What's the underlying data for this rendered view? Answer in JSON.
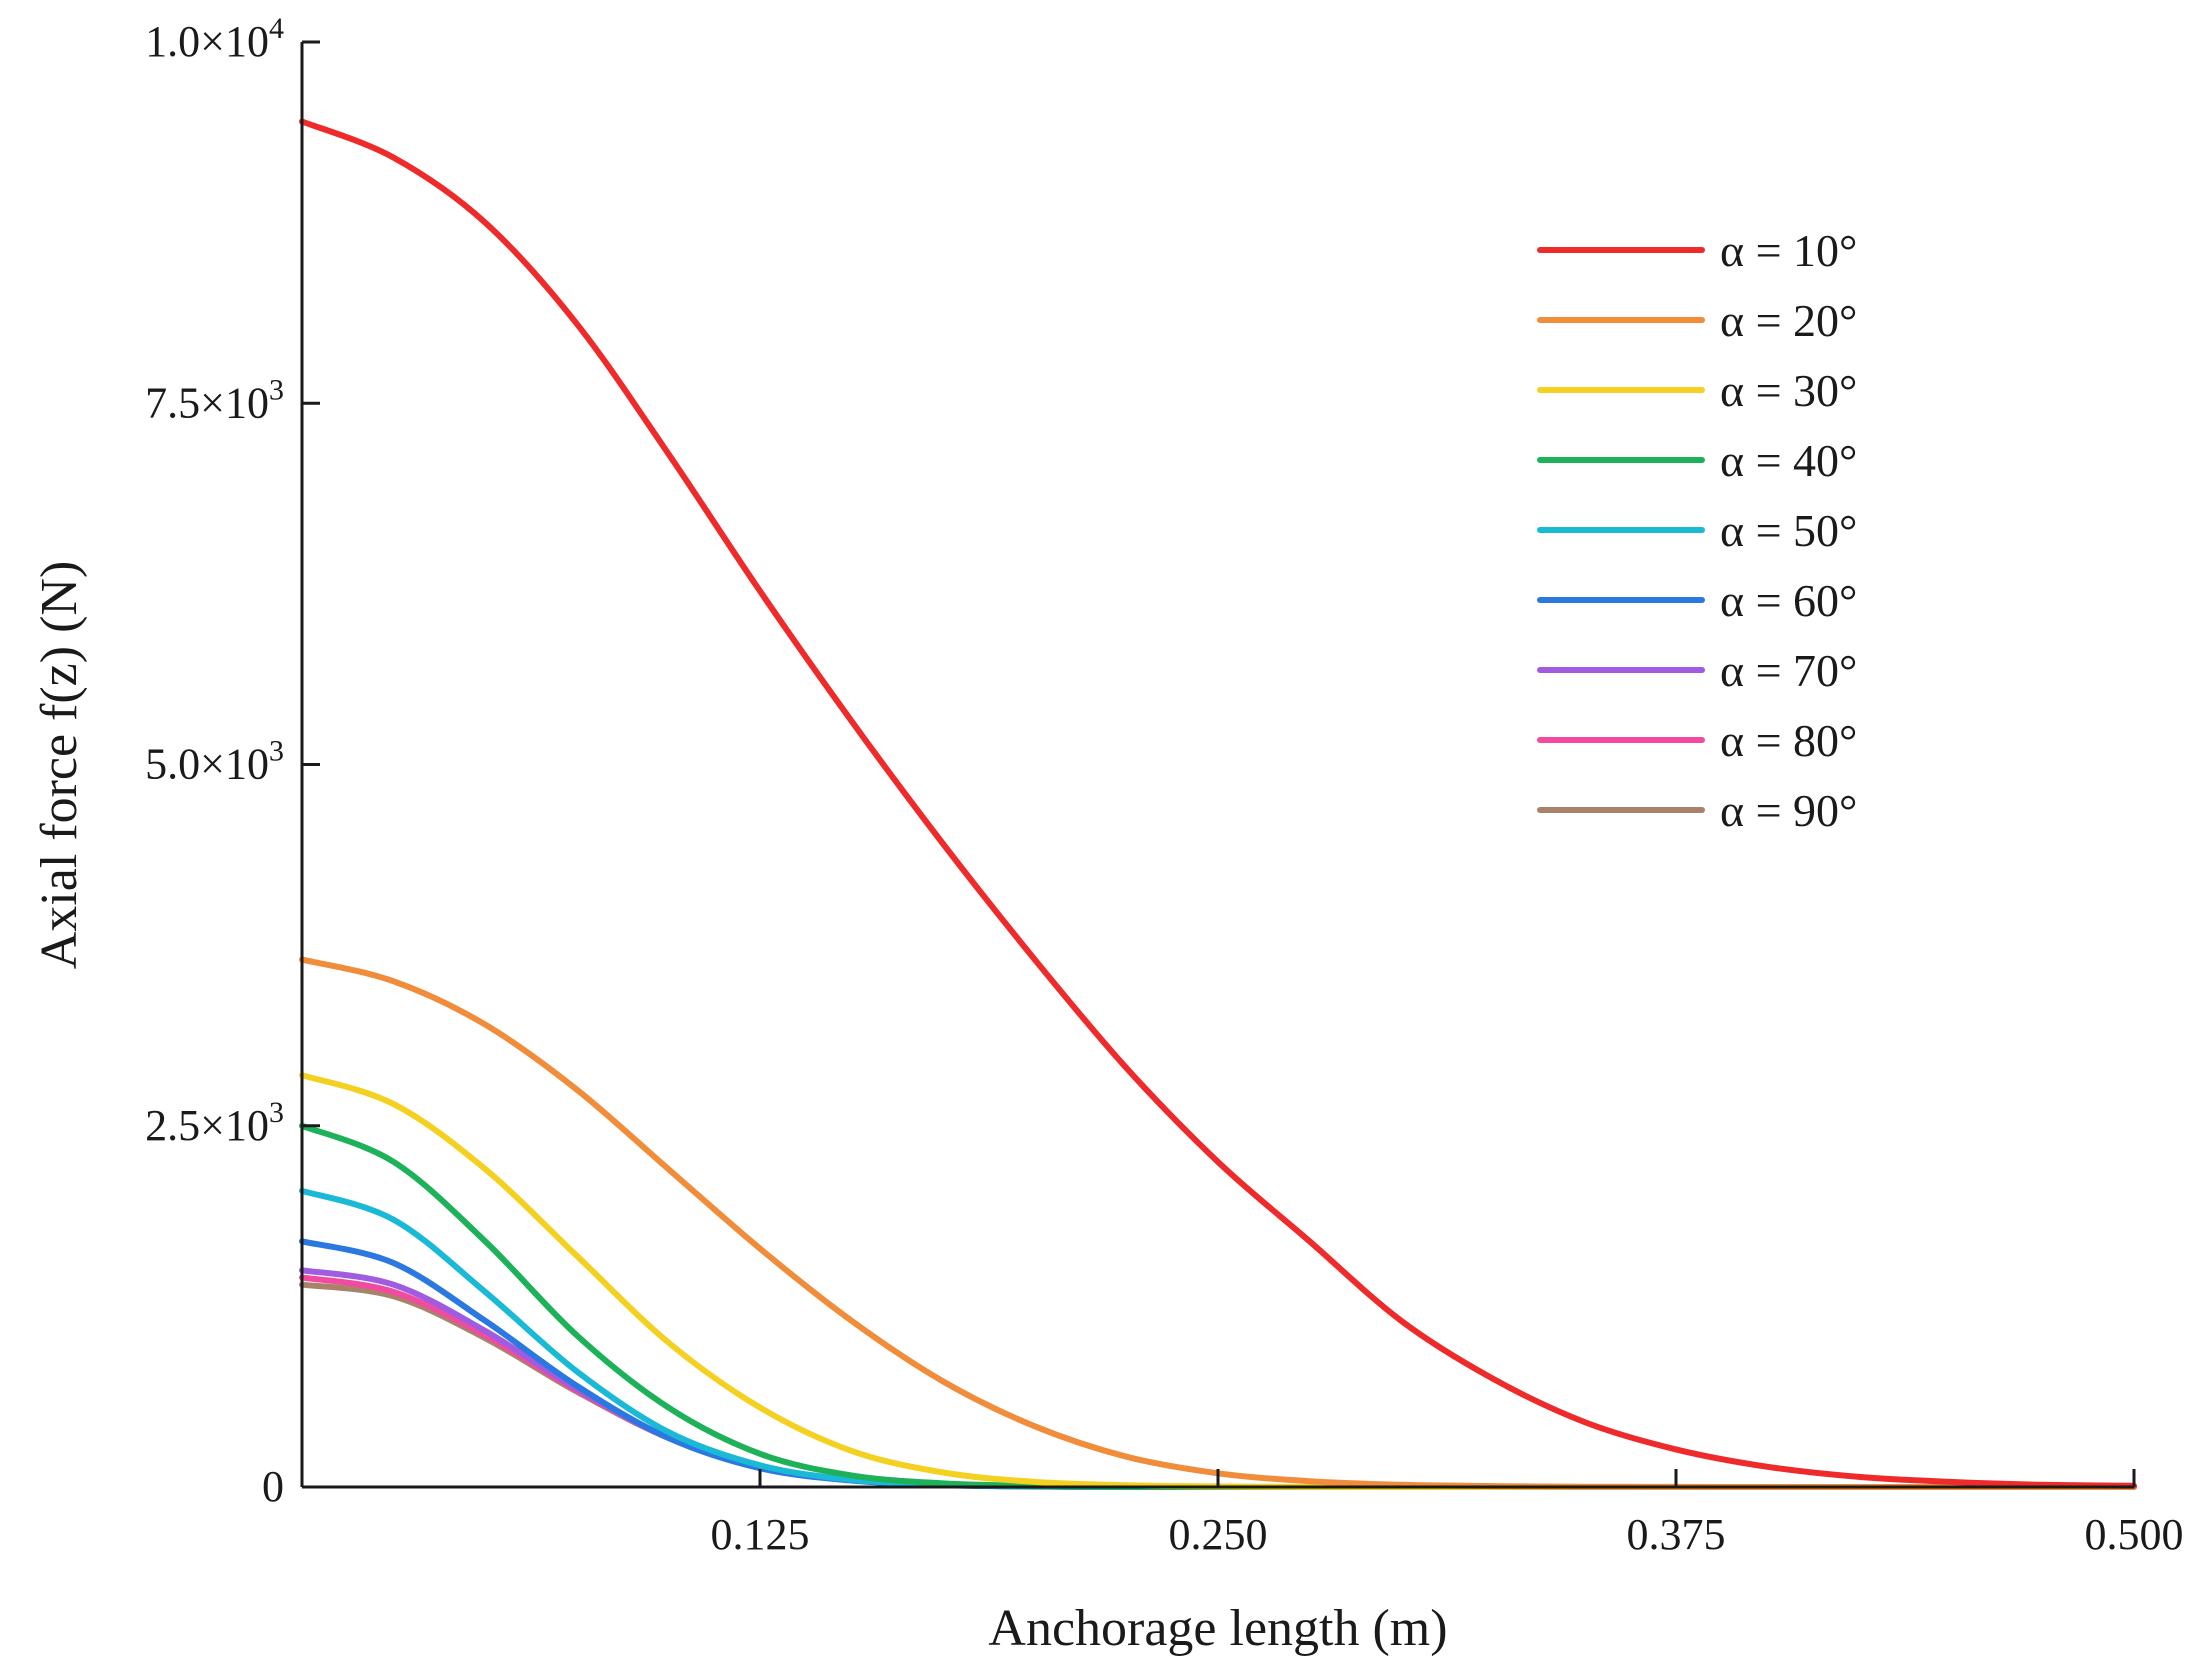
{
  "chart_data": {
    "type": "line",
    "title": "",
    "xlabel": "Anchorage length (m)",
    "ylabel": "Axial force f(z) (N)",
    "xlim": [
      0,
      0.5
    ],
    "ylim": [
      0,
      10000
    ],
    "grid": false,
    "legend_position": "top-right",
    "x_ticks": [
      {
        "value": 0.125,
        "label": "0.125"
      },
      {
        "value": 0.25,
        "label": "0.250"
      },
      {
        "value": 0.375,
        "label": "0.375"
      },
      {
        "value": 0.5,
        "label": "0.500"
      }
    ],
    "y_ticks": [
      {
        "value": 0,
        "mantissa": "0",
        "exponent": ""
      },
      {
        "value": 2500,
        "mantissa": "2.5×10",
        "exponent": "3"
      },
      {
        "value": 5000,
        "mantissa": "5.0×10",
        "exponent": "3"
      },
      {
        "value": 7500,
        "mantissa": "7.5×10",
        "exponent": "3"
      },
      {
        "value": 10000,
        "mantissa": "1.0×10",
        "exponent": "4"
      }
    ],
    "x": [
      0,
      0.025,
      0.05,
      0.075,
      0.1,
      0.125,
      0.15,
      0.175,
      0.2,
      0.225,
      0.25,
      0.275,
      0.3,
      0.325,
      0.35,
      0.375,
      0.4,
      0.425,
      0.45,
      0.475,
      0.5
    ],
    "series": [
      {
        "name": "α = 10°",
        "color": "#ee2a2a",
        "values": [
          9450,
          9200,
          8750,
          8050,
          7150,
          6200,
          5300,
          4450,
          3650,
          2900,
          2250,
          1700,
          1150,
          750,
          450,
          260,
          140,
          70,
          35,
          15,
          8
        ]
      },
      {
        "name": "α = 20°",
        "color": "#f08c3a",
        "values": [
          3650,
          3500,
          3200,
          2750,
          2200,
          1650,
          1150,
          730,
          420,
          210,
          95,
          40,
          15,
          6,
          2,
          1,
          0,
          0,
          0,
          0,
          0
        ]
      },
      {
        "name": "α = 30°",
        "color": "#f4d020",
        "values": [
          2850,
          2650,
          2200,
          1600,
          1000,
          550,
          250,
          100,
          35,
          12,
          4,
          1,
          0,
          0,
          0,
          0,
          0,
          0,
          0,
          0,
          0
        ]
      },
      {
        "name": "α = 40°",
        "color": "#1db25a",
        "values": [
          2500,
          2250,
          1700,
          1050,
          550,
          230,
          80,
          25,
          7,
          2,
          0,
          0,
          0,
          0,
          0,
          0,
          0,
          0,
          0,
          0,
          0
        ]
      },
      {
        "name": "α = 50°",
        "color": "#1ab9d6",
        "values": [
          2050,
          1850,
          1350,
          800,
          380,
          150,
          50,
          15,
          4,
          1,
          0,
          0,
          0,
          0,
          0,
          0,
          0,
          0,
          0,
          0,
          0
        ]
      },
      {
        "name": "α = 60°",
        "color": "#2a78e0",
        "values": [
          1700,
          1550,
          1150,
          700,
          340,
          130,
          45,
          13,
          3,
          1,
          0,
          0,
          0,
          0,
          0,
          0,
          0,
          0,
          0,
          0,
          0
        ]
      },
      {
        "name": "α = 70°",
        "color": "#a05ce0",
        "values": [
          1500,
          1400,
          1080,
          680,
          340,
          135,
          48,
          14,
          4,
          1,
          0,
          0,
          0,
          0,
          0,
          0,
          0,
          0,
          0,
          0,
          0
        ]
      },
      {
        "name": "α = 80°",
        "color": "#f04ba0",
        "values": [
          1450,
          1350,
          1050,
          670,
          340,
          140,
          50,
          15,
          4,
          1,
          0,
          0,
          0,
          0,
          0,
          0,
          0,
          0,
          0,
          0,
          0
        ]
      },
      {
        "name": "α = 90°",
        "color": "#a9826a",
        "values": [
          1400,
          1320,
          1030,
          660,
          340,
          140,
          50,
          15,
          4,
          1,
          0,
          0,
          0,
          0,
          0,
          0,
          0,
          0,
          0,
          0,
          0
        ]
      }
    ]
  }
}
